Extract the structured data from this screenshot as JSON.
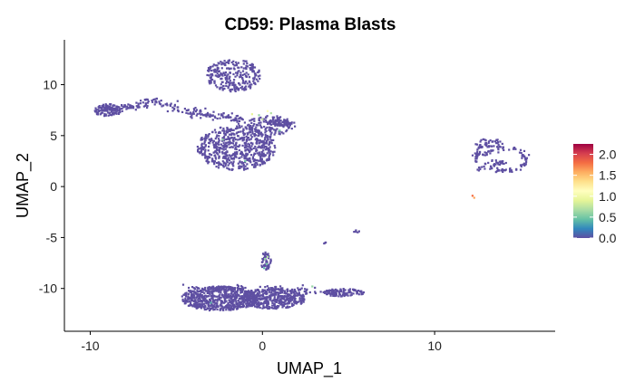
{
  "chart_data": {
    "type": "scatter",
    "title": "CD59: Plasma Blasts",
    "xlabel": "UMAP_1",
    "ylabel": "UMAP_2",
    "xlim": [
      -11.5,
      17
    ],
    "ylim": [
      -14.2,
      14.4
    ],
    "x_ticks": [
      -10,
      0,
      10
    ],
    "x_tick_labels": [
      "-10",
      "0",
      "10"
    ],
    "y_ticks": [
      -10,
      -5,
      0,
      5,
      10
    ],
    "y_tick_labels": [
      "-10",
      "-5",
      "0",
      "5",
      "10"
    ],
    "grid": false,
    "legend_position": "right",
    "colorbar": {
      "min": 0,
      "max": 2.25,
      "ticks": [
        0.0,
        0.5,
        1.0,
        1.5,
        2.0
      ],
      "tick_labels": [
        "0.0",
        "0.5",
        "1.0",
        "1.5",
        "2.0"
      ],
      "colors": [
        "#5E4FA2",
        "#3288BD",
        "#66C2A5",
        "#ABDDA4",
        "#E6F598",
        "#FFFFBF",
        "#FEE08B",
        "#FDAE61",
        "#F46D43",
        "#D53E4F",
        "#9E0142"
      ]
    },
    "base_color": "#5E4FA2",
    "clusters": [
      {
        "shape": "ellipse",
        "cx": -1.7,
        "cy": 10.9,
        "rx": 1.6,
        "ry": 1.6,
        "n": 260
      },
      {
        "shape": "ellipse",
        "cx": -1.5,
        "cy": 3.8,
        "rx": 2.3,
        "ry": 2.2,
        "n": 620
      },
      {
        "shape": "ellipse",
        "cx": 0.5,
        "cy": 6.0,
        "rx": 1.4,
        "ry": 1.0,
        "n": 140
      },
      {
        "shape": "ellipse",
        "cx": 1.0,
        "cy": 6.2,
        "rx": 0.7,
        "ry": 0.4,
        "n": 40
      },
      {
        "shape": "ellipse",
        "cx": -9.0,
        "cy": 7.5,
        "rx": 0.8,
        "ry": 0.6,
        "n": 90
      },
      {
        "shape": "path",
        "points": [
          [
            -9.5,
            7.5
          ],
          [
            -8.2,
            7.8
          ],
          [
            -7.2,
            7.8
          ],
          [
            -6.5,
            8.5
          ],
          [
            -5.5,
            8.0
          ],
          [
            -4.5,
            7.4
          ],
          [
            -3.5,
            7.2
          ],
          [
            -2.0,
            6.8
          ],
          [
            -1.0,
            6.4
          ]
        ],
        "width": 0.4,
        "n": 210
      },
      {
        "shape": "ellipse",
        "cx": -2.5,
        "cy": -11.0,
        "rx": 2.2,
        "ry": 1.2,
        "n": 620
      },
      {
        "shape": "ellipse",
        "cx": 0.6,
        "cy": -11.0,
        "rx": 1.9,
        "ry": 1.0,
        "n": 430
      },
      {
        "shape": "ellipse",
        "cx": 4.7,
        "cy": -10.4,
        "rx": 1.2,
        "ry": 0.4,
        "n": 110
      },
      {
        "shape": "path",
        "points": [
          [
            -4.5,
            -10.0
          ],
          [
            -1.0,
            -10.0
          ],
          [
            2.5,
            -10.2
          ],
          [
            4.0,
            -10.4
          ]
        ],
        "width": 0.3,
        "n": 110
      },
      {
        "shape": "ellipse",
        "cx": 0.2,
        "cy": -7.3,
        "rx": 0.3,
        "ry": 0.9,
        "n": 45
      },
      {
        "shape": "ellipse",
        "cx": 13.2,
        "cy": 4.2,
        "rx": 0.9,
        "ry": 0.5,
        "n": 40
      },
      {
        "shape": "path",
        "points": [
          [
            12.6,
            4.1
          ],
          [
            12.5,
            3.0
          ],
          [
            12.6,
            1.5
          ]
        ],
        "width": 0.2,
        "n": 30
      },
      {
        "shape": "path",
        "points": [
          [
            12.6,
            3.0
          ],
          [
            13.8,
            3.8
          ],
          [
            15.0,
            3.5
          ],
          [
            15.4,
            2.5
          ],
          [
            14.8,
            1.6
          ],
          [
            13.7,
            1.6
          ],
          [
            12.7,
            2.2
          ]
        ],
        "width": 0.25,
        "n": 90
      },
      {
        "shape": "ellipse",
        "cx": 13.5,
        "cy": 2.4,
        "rx": 0.7,
        "ry": 0.3,
        "n": 25
      },
      {
        "shape": "ellipse",
        "cx": 5.5,
        "cy": -4.4,
        "rx": 0.2,
        "ry": 0.15,
        "n": 6
      },
      {
        "shape": "ellipse",
        "cx": 3.6,
        "cy": -5.5,
        "rx": 0.1,
        "ry": 0.1,
        "n": 3
      }
    ],
    "highlight_points": [
      {
        "x": 12.2,
        "y": -0.9,
        "value": 1.8
      },
      {
        "x": 12.3,
        "y": -1.1,
        "value": 1.6
      },
      {
        "x": 0.15,
        "y": -7.1,
        "value": 0.6
      },
      {
        "x": 0.25,
        "y": -7.6,
        "value": 0.5
      },
      {
        "x": 0.3,
        "y": -6.9,
        "value": 0.7
      },
      {
        "x": 0.1,
        "y": -8.0,
        "value": 0.4
      },
      {
        "x": -0.6,
        "y": 7.1,
        "value": 0.9
      },
      {
        "x": -0.2,
        "y": 7.0,
        "value": 0.6
      },
      {
        "x": 0.3,
        "y": 7.4,
        "value": 1.1
      },
      {
        "x": 0.5,
        "y": 7.2,
        "value": 0.7
      },
      {
        "x": 0.0,
        "y": 6.6,
        "value": 0.8
      },
      {
        "x": -1.0,
        "y": 2.5,
        "value": 0.5
      },
      {
        "x": -2.3,
        "y": 4.6,
        "value": 0.6
      },
      {
        "x": 1.0,
        "y": 5.5,
        "value": 0.5
      },
      {
        "x": 2.9,
        "y": -9.8,
        "value": 0.6
      },
      {
        "x": -3.0,
        "y": -11.4,
        "value": 0.4
      }
    ]
  }
}
